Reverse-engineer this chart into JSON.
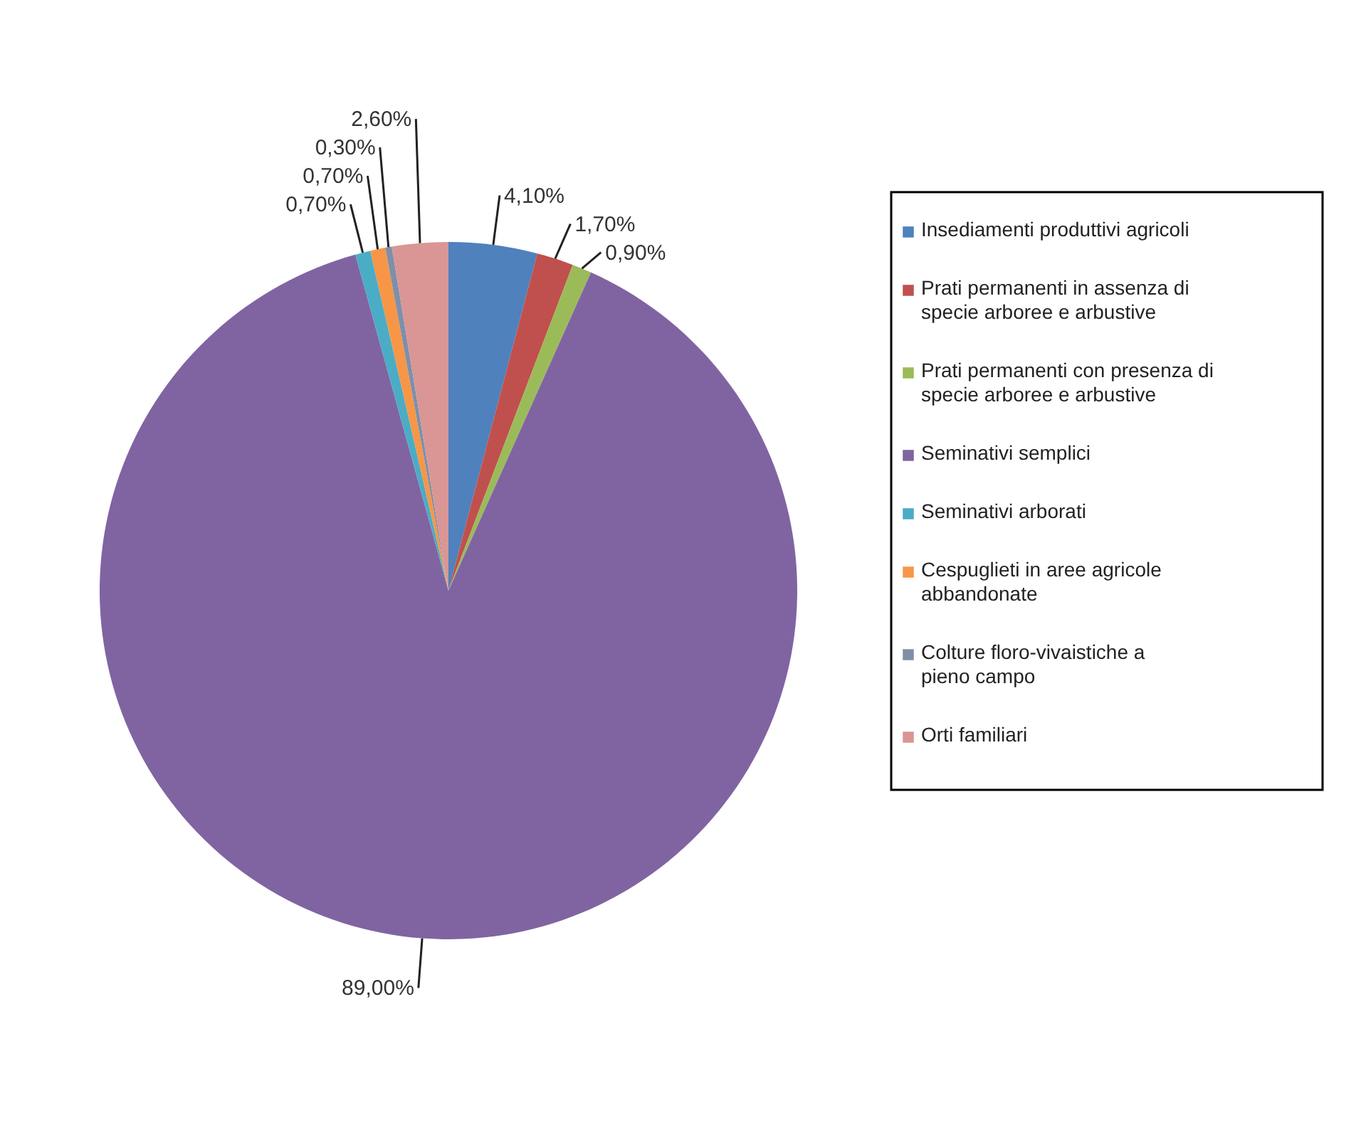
{
  "chart_data": {
    "type": "pie",
    "categories": [
      "Insediamenti produttivi agricoli",
      "Prati permanenti in assenza di specie arboree e arbustive",
      "Prati permanenti con presenza di specie arboree e arbustive",
      "Seminativi semplici",
      "Seminativi arborati",
      "Cespuglieti in aree agricole abbandonate",
      "Colture floro-vivaistiche a pieno campo",
      "Orti familiari"
    ],
    "values": [
      4.1,
      1.7,
      0.9,
      89.0,
      0.7,
      0.7,
      0.3,
      2.6
    ],
    "colors": [
      "#4f81bd",
      "#c0504d",
      "#9bbb59",
      "#8064a2",
      "#4bacc6",
      "#f79646",
      "#7f8fa9",
      "#d99694"
    ],
    "value_labels": [
      "4,10%",
      "1,70%",
      "0,90%",
      "89,00%",
      "0,70%",
      "0,70%",
      "0,30%",
      "2,60%"
    ],
    "legend": "right"
  }
}
